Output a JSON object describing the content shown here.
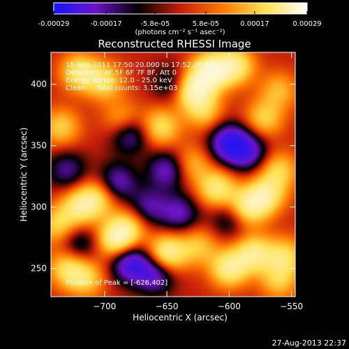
{
  "colorbar": {
    "ticks": [
      "-0.00029",
      "-0.00017",
      "-5.8e-05",
      "5.8e-05",
      "0.00017",
      "0.00029"
    ],
    "tick_values": [
      -0.00029,
      -0.00017,
      -5.8e-05,
      5.8e-05,
      0.00017,
      0.00029
    ],
    "range": [
      -0.00029,
      0.00029
    ],
    "unit_label": "(photons cm⁻² s⁻¹ asec⁻²)",
    "stops": [
      "#1414ff",
      "#6c14c8",
      "#000000",
      "#c81e0a",
      "#ff7a00",
      "#ffe050",
      "#ffffff"
    ]
  },
  "chart_data": {
    "type": "heatmap",
    "title": "Reconstructed RHESSI Image",
    "xlabel": "Heliocentric X (arcsec)",
    "ylabel": "Heliocentric Y (arcsec)",
    "xlim": [
      -743,
      -547
    ],
    "ylim": [
      227,
      426
    ],
    "xticks": [
      -700,
      -650,
      -600,
      -550
    ],
    "xtick_labels": [
      "−700",
      "−650",
      "−600",
      "−550"
    ],
    "yticks": [
      250,
      300,
      350,
      400
    ],
    "ytick_labels": [
      "250",
      "300",
      "350",
      "400"
    ],
    "annotations": [
      "15-Sep-2011 17:50:20.000 to 17:52:20.000",
      "Detectors: 4F 5F 6F 7F 8F, Att 0",
      "Energy Range: 12.0 - 25.0 keV",
      "Clean     Total counts: 3.15e+03"
    ],
    "peak_label": "Position of Peak = [-626,402]",
    "peak_position": [
      -626,
      402
    ],
    "sources": [
      {
        "x": -615,
        "y": 410,
        "v": 1.0
      },
      {
        "x": -630,
        "y": 395,
        "v": 0.9
      },
      {
        "x": -595,
        "y": 415,
        "v": 0.75
      },
      {
        "x": -720,
        "y": 410,
        "v": 0.7
      },
      {
        "x": -700,
        "y": 402,
        "v": 0.6
      },
      {
        "x": -735,
        "y": 365,
        "v": 0.55
      },
      {
        "x": -685,
        "y": 370,
        "v": 0.55
      },
      {
        "x": -655,
        "y": 365,
        "v": 0.65
      },
      {
        "x": -620,
        "y": 378,
        "v": 0.5
      },
      {
        "x": -572,
        "y": 372,
        "v": 0.55
      },
      {
        "x": -560,
        "y": 395,
        "v": 0.45
      },
      {
        "x": -610,
        "y": 315,
        "v": 0.75
      },
      {
        "x": -585,
        "y": 300,
        "v": 0.8
      },
      {
        "x": -570,
        "y": 310,
        "v": 0.7
      },
      {
        "x": -560,
        "y": 330,
        "v": 0.55
      },
      {
        "x": -630,
        "y": 335,
        "v": 0.45
      },
      {
        "x": -720,
        "y": 300,
        "v": 0.7
      },
      {
        "x": -705,
        "y": 308,
        "v": 0.6
      },
      {
        "x": -738,
        "y": 285,
        "v": 0.55
      },
      {
        "x": -690,
        "y": 273,
        "v": 0.95
      },
      {
        "x": -680,
        "y": 285,
        "v": 0.5
      },
      {
        "x": -650,
        "y": 262,
        "v": 0.9
      },
      {
        "x": -625,
        "y": 268,
        "v": 0.5
      },
      {
        "x": -730,
        "y": 250,
        "v": 0.6
      },
      {
        "x": -715,
        "y": 242,
        "v": 0.55
      },
      {
        "x": -600,
        "y": 250,
        "v": 0.8
      },
      {
        "x": -580,
        "y": 262,
        "v": 0.75
      },
      {
        "x": -555,
        "y": 260,
        "v": 0.6
      },
      {
        "x": -560,
        "y": 240,
        "v": 0.5
      },
      {
        "x": -680,
        "y": 360,
        "v": -0.7
      },
      {
        "x": -650,
        "y": 330,
        "v": -0.65
      },
      {
        "x": -600,
        "y": 352,
        "v": -0.95
      },
      {
        "x": -585,
        "y": 345,
        "v": -0.7
      },
      {
        "x": -665,
        "y": 300,
        "v": -0.55
      },
      {
        "x": -690,
        "y": 320,
        "v": -0.65
      },
      {
        "x": -730,
        "y": 330,
        "v": -0.5
      },
      {
        "x": -680,
        "y": 255,
        "v": -0.9
      },
      {
        "x": -660,
        "y": 245,
        "v": -0.75
      },
      {
        "x": -640,
        "y": 295,
        "v": -0.6
      },
      {
        "x": -720,
        "y": 270,
        "v": -0.45
      },
      {
        "x": -645,
        "y": 400,
        "v": -0.45
      },
      {
        "x": -600,
        "y": 290,
        "v": -0.4
      }
    ]
  },
  "footer": {
    "timestamp": "27-Aug-2013 22:37"
  }
}
